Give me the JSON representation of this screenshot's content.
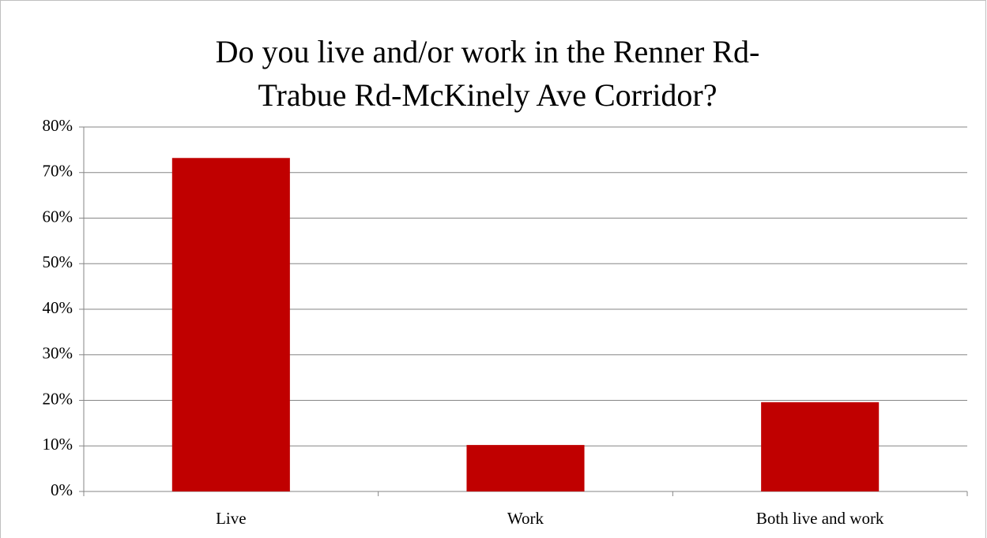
{
  "chart_data": {
    "type": "bar",
    "title": "Do you live and/or work in the Renner Rd-Trabue Rd-McKinely Ave Corridor?",
    "categories": [
      "Live",
      "Work",
      "Both live and work"
    ],
    "values": [
      73.2,
      10.2,
      19.6
    ],
    "color": "#c00000",
    "ylim": [
      0,
      80
    ],
    "yticks": [
      {
        "value": 0,
        "label": "0%"
      },
      {
        "value": 10,
        "label": "10%"
      },
      {
        "value": 20,
        "label": "20%"
      },
      {
        "value": 30,
        "label": "30%"
      },
      {
        "value": 40,
        "label": "40%"
      },
      {
        "value": 50,
        "label": "50%"
      },
      {
        "value": 60,
        "label": "60%"
      },
      {
        "value": 70,
        "label": "70%"
      },
      {
        "value": 80,
        "label": "80%"
      }
    ],
    "grid": true
  }
}
